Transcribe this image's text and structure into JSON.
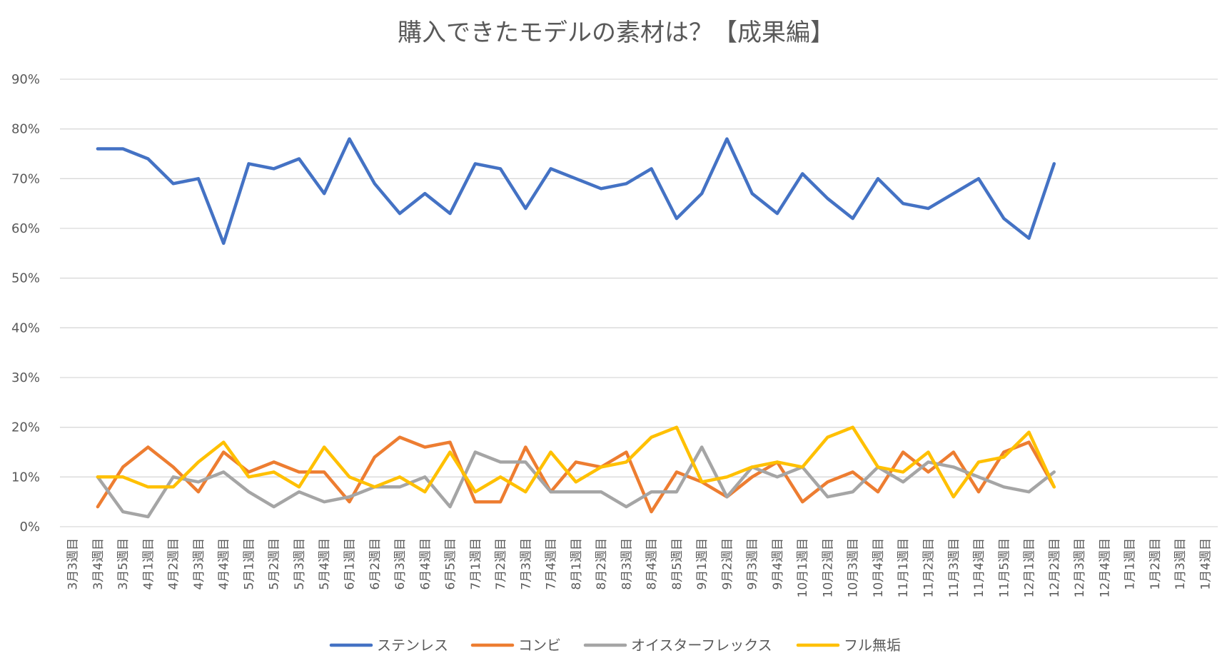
{
  "chart_data": {
    "type": "line",
    "title": "購入できたモデルの素材は？【成果編】",
    "xlabel": "",
    "ylabel": "",
    "ylim": [
      0,
      90
    ],
    "yticks": [
      "0%",
      "10%",
      "20%",
      "30%",
      "40%",
      "50%",
      "60%",
      "70%",
      "80%",
      "90%"
    ],
    "grid": true,
    "legend_position": "bottom",
    "categories": [
      "3月3週目",
      "3月4週目",
      "3月5週目",
      "4月1週目",
      "4月2週目",
      "4月3週目",
      "4月4週目",
      "5月1週目",
      "5月2週目",
      "5月3週目",
      "5月4週目",
      "6月1週目",
      "6月2週目",
      "6月3週目",
      "6月4週目",
      "6月5週目",
      "7月1週目",
      "7月2週目",
      "7月3週目",
      "7月4週目",
      "8月1週目",
      "8月2週目",
      "8月3週目",
      "8月4週目",
      "8月5週目",
      "9月1週目",
      "9月2週目",
      "9月3週目",
      "9月4週目",
      "10月1週目",
      "10月2週目",
      "10月3週目",
      "10月4週目",
      "11月1週目",
      "11月2週目",
      "11月3週目",
      "11月4週目",
      "11月5週目",
      "12月1週目",
      "12月2週目",
      "12月3週目",
      "12月4週目",
      "1月1週目",
      "1月2週目",
      "1月3週目",
      "1月4週目"
    ],
    "series": [
      {
        "name": "ステンレス",
        "color": "#4472c4",
        "values": [
          null,
          76,
          76,
          74,
          69,
          70,
          57,
          73,
          72,
          74,
          67,
          78,
          69,
          63,
          67,
          63,
          73,
          72,
          64,
          72,
          70,
          68,
          69,
          72,
          62,
          67,
          78,
          67,
          63,
          71,
          66,
          62,
          70,
          65,
          64,
          67,
          70,
          62,
          58,
          73,
          null,
          null,
          null,
          null,
          null,
          null
        ]
      },
      {
        "name": "コンビ",
        "color": "#ed7d31",
        "values": [
          null,
          4,
          12,
          16,
          12,
          7,
          15,
          11,
          13,
          11,
          11,
          5,
          14,
          18,
          16,
          17,
          5,
          5,
          16,
          7,
          13,
          12,
          15,
          3,
          11,
          9,
          6,
          10,
          13,
          5,
          9,
          11,
          7,
          15,
          11,
          15,
          7,
          15,
          17,
          8,
          null,
          null,
          null,
          null,
          null,
          null
        ]
      },
      {
        "name": "オイスターフレックス",
        "color": "#a5a5a5",
        "values": [
          null,
          10,
          3,
          2,
          10,
          9,
          11,
          7,
          4,
          7,
          5,
          6,
          8,
          8,
          10,
          4,
          15,
          13,
          13,
          7,
          7,
          7,
          4,
          7,
          7,
          16,
          6,
          12,
          10,
          12,
          6,
          7,
          12,
          9,
          13,
          12,
          10,
          8,
          7,
          11,
          null,
          null,
          null,
          null,
          null,
          null
        ]
      },
      {
        "name": "フル無垢",
        "color": "#ffc000",
        "values": [
          null,
          10,
          10,
          8,
          8,
          13,
          17,
          10,
          11,
          8,
          16,
          10,
          8,
          10,
          7,
          15,
          7,
          10,
          7,
          15,
          9,
          12,
          13,
          18,
          20,
          9,
          10,
          12,
          13,
          12,
          18,
          20,
          12,
          11,
          15,
          6,
          13,
          14,
          19,
          8,
          null,
          null,
          null,
          null,
          null,
          null
        ]
      }
    ]
  }
}
